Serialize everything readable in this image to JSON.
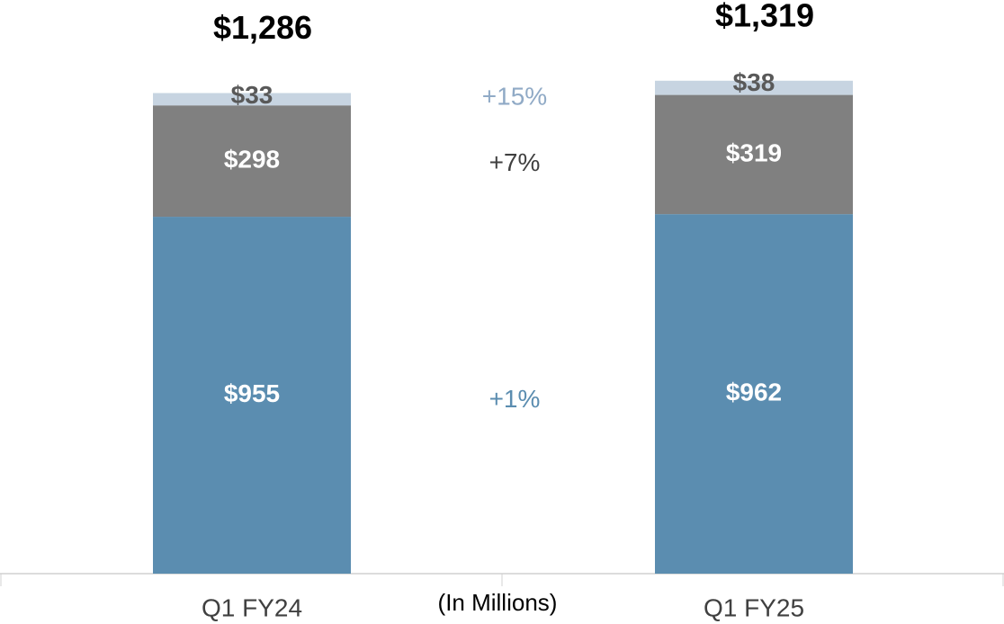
{
  "chart_data": {
    "type": "stacked_bar",
    "categories": [
      "Q1 FY24",
      "Q1 FY25"
    ],
    "series": [
      {
        "color": "#5b8db0",
        "label_color": "#ffffff",
        "values": [
          955,
          962
        ],
        "value_labels": [
          "$955",
          "$962"
        ],
        "change": "+1%",
        "change_color": "#5b8db0"
      },
      {
        "color": "#808080",
        "label_color": "#ffffff",
        "values": [
          298,
          319
        ],
        "value_labels": [
          "$298",
          "$319"
        ],
        "change": "+7%",
        "change_color": "#404040"
      },
      {
        "color": "#c7d4e1",
        "label_color": "#595959",
        "values": [
          33,
          38
        ],
        "value_labels": [
          "$33",
          "$38"
        ],
        "change": "+15%",
        "change_color": "#90aac6"
      }
    ],
    "totals": [
      1286,
      1319
    ],
    "total_labels": [
      "$1,286",
      "$1,319"
    ],
    "note": "(In Millions)",
    "ylim": [
      0,
      1535
    ]
  }
}
